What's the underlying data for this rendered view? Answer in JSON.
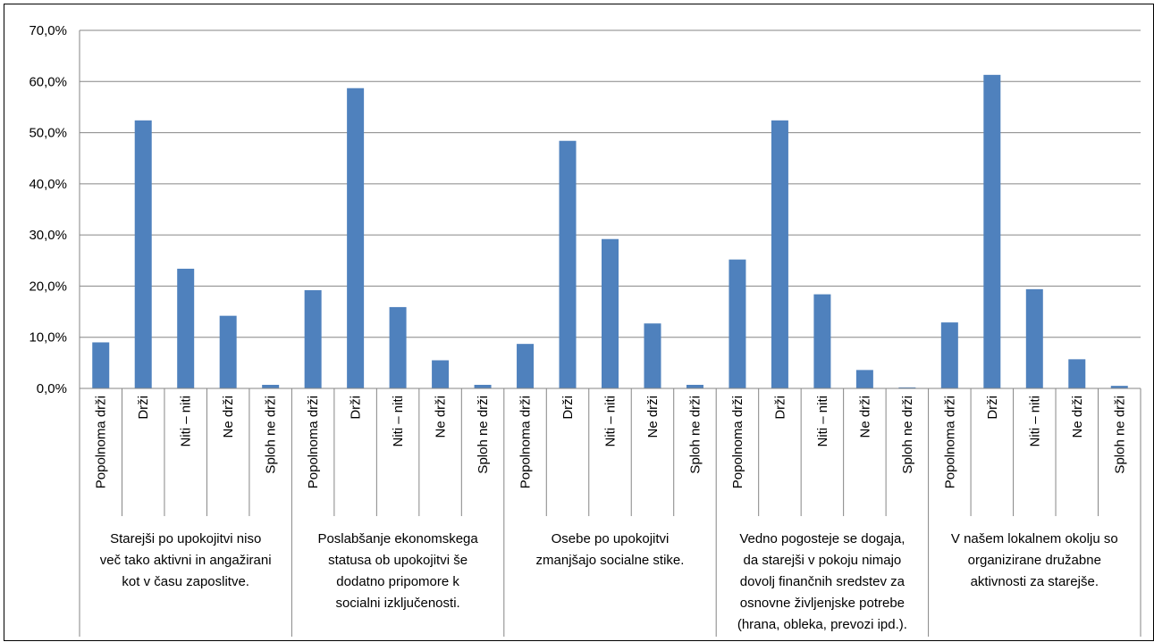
{
  "chart_data": {
    "type": "bar",
    "title": "",
    "xlabel": "",
    "ylabel": "",
    "ylim": [
      0,
      70
    ],
    "yticks": [
      "0,0%",
      "10,0%",
      "20,0%",
      "30,0%",
      "40,0%",
      "50,0%",
      "60,0%",
      "70,0%"
    ],
    "grid": true,
    "legend": "none",
    "bar_color": "#4f81bd",
    "categories": [
      "Popolnoma drži",
      "Drži",
      "Niti – niti",
      "Ne drži",
      "Sploh ne drži"
    ],
    "groups": [
      {
        "label": "Starejši po upokojitvi niso več tako aktivni in angažirani kot v času zaposlitve.",
        "label_lines": [
          "Starejši po upokojitvi niso",
          "več tako aktivni in angažirani",
          "kot v času zaposlitve."
        ],
        "values": [
          9.0,
          52.4,
          23.4,
          14.2,
          0.7
        ]
      },
      {
        "label": "Poslabšanje ekonomskega statusa ob upokojitvi še dodatno pripomore k socialni izključenosti.",
        "label_lines": [
          "Poslabšanje ekonomskega",
          "statusa ob upokojitvi še",
          "dodatno pripomore k",
          "socialni izključenosti."
        ],
        "values": [
          19.2,
          58.7,
          15.9,
          5.5,
          0.7
        ]
      },
      {
        "label": "Osebe po upokojitvi zmanjšajo socialne stike.",
        "label_lines": [
          "Osebe po upokojitvi",
          "zmanjšajo socialne stike."
        ],
        "values": [
          8.7,
          48.4,
          29.2,
          12.7,
          0.7
        ]
      },
      {
        "label": "Vedno pogosteje se dogaja, da starejši v pokoju nimajo dovolj finančnih sredstev za osnovne življenjske potrebe (hrana, obleka, prevozi ipd.).",
        "label_lines": [
          "Vedno pogosteje se dogaja,",
          "da starejši v pokoju nimajo",
          "dovolj finančnih sredstev za",
          "osnovne življenjske potrebe",
          "(hrana, obleka, prevozi ipd.)."
        ],
        "values": [
          25.2,
          52.4,
          18.4,
          3.6,
          0.2
        ]
      },
      {
        "label": "V našem lokalnem okolju so organizirane družabne aktivnosti za starejše.",
        "label_lines": [
          "V našem lokalnem okolju so",
          "organizirane družabne",
          "aktivnosti za starejše."
        ],
        "values": [
          12.9,
          61.3,
          19.4,
          5.7,
          0.5
        ]
      }
    ]
  }
}
